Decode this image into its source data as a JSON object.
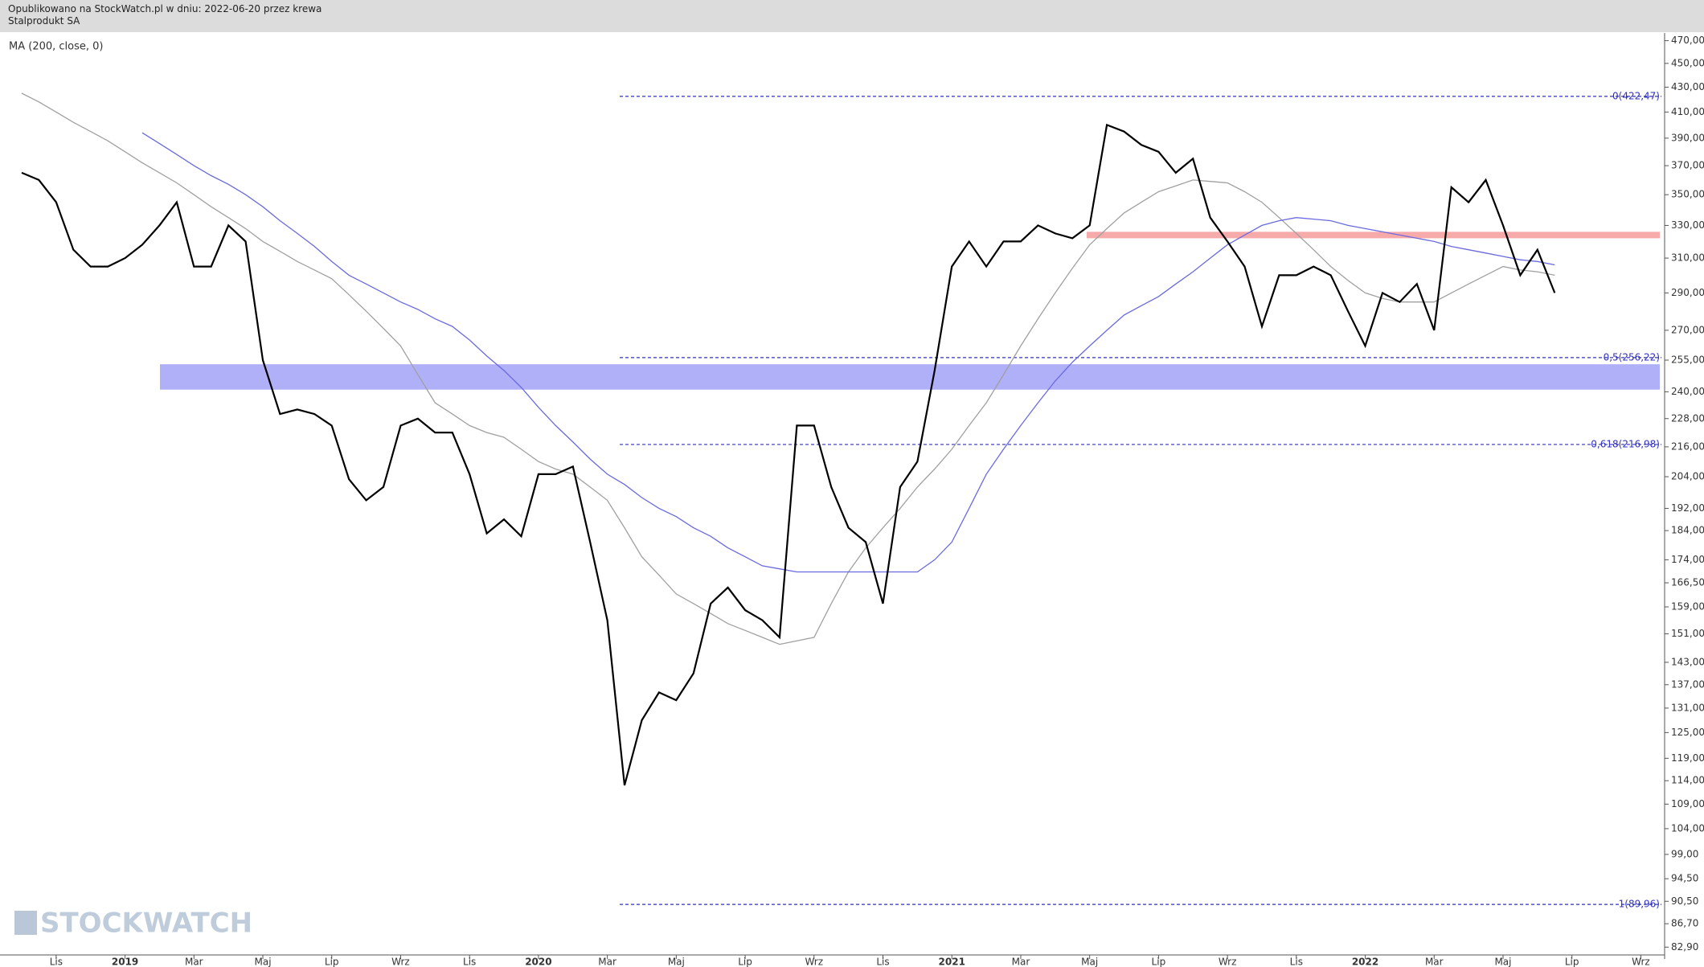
{
  "header": {
    "published": "Opublikowano na StockWatch.pl w dniu: 2022-06-20 przez krewa",
    "instrument": "Stalprodukt SA"
  },
  "chart_data": {
    "type": "line",
    "log_scale": true,
    "watermark": "STOCKWATCH",
    "categories": [
      null,
      null,
      "Lis",
      null,
      null,
      null,
      "2019",
      null,
      null,
      null,
      "Mar",
      null,
      null,
      null,
      "Maj",
      null,
      null,
      null,
      "Lip",
      null,
      null,
      null,
      "Wrz",
      null,
      null,
      null,
      "Lis",
      null,
      null,
      null,
      "2020",
      null,
      null,
      null,
      "Mar",
      null,
      null,
      null,
      "Maj",
      null,
      null,
      null,
      "Lip",
      null,
      null,
      null,
      "Wrz",
      null,
      null,
      null,
      "Lis",
      null,
      null,
      null,
      "2021",
      null,
      null,
      null,
      "Mar",
      null,
      null,
      null,
      "Maj",
      null,
      null,
      null,
      "Lip",
      null,
      null,
      null,
      "Wrz",
      null,
      null,
      null,
      "Lis",
      null,
      null,
      null,
      "2022",
      null,
      null,
      null,
      "Mar",
      null,
      null,
      null,
      "Maj",
      null,
      null,
      null,
      "Lip",
      null,
      null,
      null,
      "Wrz",
      null
    ],
    "series": [
      {
        "color": "#000000",
        "values": [
          365,
          360,
          345,
          315,
          305,
          305,
          310,
          318,
          330,
          345,
          305,
          305,
          330,
          320,
          255,
          230,
          232,
          230,
          225,
          203,
          195,
          200,
          225,
          228,
          222,
          222,
          205,
          183,
          188,
          182,
          205,
          205,
          208,
          180,
          155,
          113,
          128,
          135,
          133,
          140,
          160,
          165,
          158,
          155,
          150,
          225,
          225,
          200,
          185,
          180,
          160,
          200,
          210,
          250,
          305,
          320,
          305,
          320,
          320,
          330,
          325,
          322,
          330,
          400,
          395,
          385,
          380,
          365,
          375,
          335,
          320,
          305,
          272,
          300,
          300,
          305,
          300,
          280,
          262,
          290,
          285,
          295,
          270,
          355,
          345,
          360,
          330,
          300,
          315,
          290,
          null,
          null,
          null,
          null,
          null,
          null
        ]
      },
      {
        "color": "#a0a0a0",
        "values": [
          425,
          418,
          410,
          402,
          395,
          388,
          380,
          372,
          365,
          358,
          350,
          342,
          335,
          328,
          320,
          314,
          308,
          303,
          298,
          289,
          280,
          271,
          262,
          248,
          235,
          230,
          225,
          222,
          220,
          215,
          210,
          207,
          205,
          200,
          195,
          185,
          175,
          169,
          163,
          160,
          157,
          154,
          152,
          150,
          148,
          149,
          150,
          160,
          170,
          178,
          185,
          192,
          200,
          207,
          215,
          225,
          235,
          248,
          262,
          276,
          290,
          304,
          318,
          328,
          338,
          345,
          352,
          356,
          360,
          359,
          358,
          352,
          345,
          335,
          325,
          315,
          305,
          297,
          290,
          287,
          285,
          285,
          285,
          290,
          295,
          300,
          305,
          303,
          302,
          300,
          null,
          null,
          null,
          null,
          null,
          null
        ]
      },
      {
        "name": "MA (200, close, 0)",
        "color": "#6a6ae0",
        "values": [
          null,
          null,
          null,
          null,
          null,
          null,
          null,
          394,
          386,
          378,
          370,
          363,
          357,
          350,
          342,
          333,
          325,
          317,
          308,
          300,
          295,
          290,
          285,
          281,
          276,
          272,
          265,
          257,
          250,
          242,
          233,
          225,
          218,
          211,
          205,
          201,
          196,
          192,
          189,
          185,
          182,
          178,
          175,
          172,
          171,
          170,
          170,
          170,
          170,
          170,
          170,
          170,
          170,
          174,
          180,
          192,
          205,
          215,
          225,
          235,
          245,
          254,
          262,
          270,
          278,
          283,
          288,
          295,
          302,
          310,
          318,
          324,
          330,
          333,
          335,
          334,
          333,
          330,
          328,
          326,
          324,
          322,
          320,
          317,
          315,
          313,
          311,
          309,
          308,
          306,
          null,
          null,
          null,
          null,
          null,
          null
        ]
      }
    ],
    "ylim": [
      82.3,
      477
    ],
    "yticks": [
      {
        "value": 470,
        "label": "470,00"
      },
      {
        "value": 450,
        "label": "450,00"
      },
      {
        "value": 430,
        "label": "430,00"
      },
      {
        "value": 410,
        "label": "410,00"
      },
      {
        "value": 390,
        "label": "390,00"
      },
      {
        "value": 370,
        "label": "370,00"
      },
      {
        "value": 350,
        "label": "350,00"
      },
      {
        "value": 330,
        "label": "330,00"
      },
      {
        "value": 310,
        "label": "310,00"
      },
      {
        "value": 290,
        "label": "290,00"
      },
      {
        "value": 270,
        "label": "270,00"
      },
      {
        "value": 255,
        "label": "255,00"
      },
      {
        "value": 240,
        "label": "240,00"
      },
      {
        "value": 228,
        "label": "228,00"
      },
      {
        "value": 216,
        "label": "216,00"
      },
      {
        "value": 204,
        "label": "204,00"
      },
      {
        "value": 192,
        "label": "192,00"
      },
      {
        "value": 184,
        "label": "184,00"
      },
      {
        "value": 174,
        "label": "174,00"
      },
      {
        "value": 166.5,
        "label": "166,50"
      },
      {
        "value": 159,
        "label": "159,00"
      },
      {
        "value": 151,
        "label": "151,00"
      },
      {
        "value": 143,
        "label": "143,00"
      },
      {
        "value": 137,
        "label": "137,00"
      },
      {
        "value": 131,
        "label": "131,00"
      },
      {
        "value": 125,
        "label": "125,00"
      },
      {
        "value": 119,
        "label": "119,00"
      },
      {
        "value": 114,
        "label": "114,00"
      },
      {
        "value": 109,
        "label": "109,00"
      },
      {
        "value": 104,
        "label": "104,00"
      },
      {
        "value": 99,
        "label": "99,00"
      },
      {
        "value": 94.5,
        "label": "94,50"
      },
      {
        "value": 90.5,
        "label": "90,50"
      },
      {
        "value": 86.7,
        "label": "86,70"
      },
      {
        "value": 82.9,
        "label": "82,90"
      }
    ],
    "levels": [
      {
        "value": 422.47,
        "label": "0(422,47)"
      },
      {
        "value": 256.22,
        "label": "0,5(256,22)"
      },
      {
        "value": 216.98,
        "label": "0,618(216,98)"
      },
      {
        "value": 89.96,
        "label": "1(89,96)"
      }
    ],
    "level_color": "#3030c0",
    "bands": [
      {
        "from": 322,
        "to": 326,
        "color": "#f7aaaa"
      },
      {
        "from": 241,
        "to": 253,
        "color": "#b0b0f8"
      }
    ]
  }
}
